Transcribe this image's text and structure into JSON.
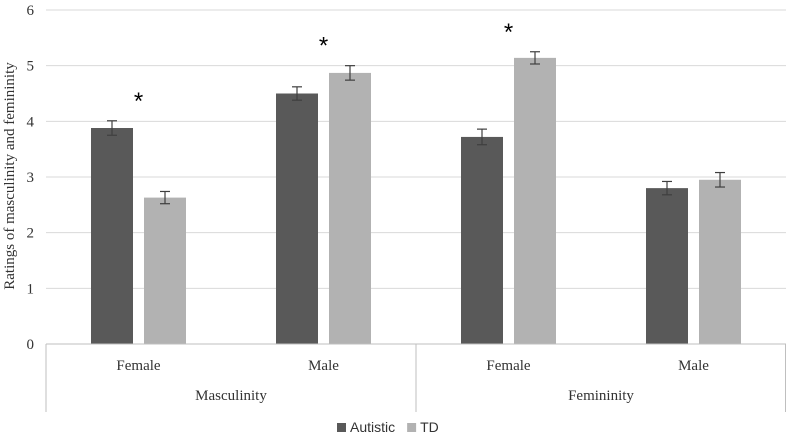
{
  "chart_data": {
    "type": "bar",
    "title": "",
    "xlabel": "",
    "ylabel": "Ratings of masculinity and femininity",
    "ylim": [
      0,
      6
    ],
    "yticks": [
      0,
      1,
      2,
      3,
      4,
      5,
      6
    ],
    "grid": true,
    "legend_position": "bottom",
    "groups": [
      {
        "label": "Masculinity",
        "categories": [
          "Female",
          "Male"
        ]
      },
      {
        "label": "Femininity",
        "categories": [
          "Female",
          "Male"
        ]
      }
    ],
    "categories": [
      "Female",
      "Male",
      "Female",
      "Male"
    ],
    "series": [
      {
        "name": "Autistic",
        "color": "#595959",
        "values": [
          3.88,
          4.5,
          3.72,
          2.8
        ],
        "errors": [
          0.13,
          0.12,
          0.14,
          0.12
        ]
      },
      {
        "name": "TD",
        "color": "#b2b2b2",
        "values": [
          2.63,
          4.87,
          5.14,
          2.95
        ],
        "errors": [
          0.11,
          0.13,
          0.11,
          0.13
        ]
      }
    ],
    "annotations": [
      {
        "text": "*",
        "category_index": 0
      },
      {
        "text": "*",
        "category_index": 1
      },
      {
        "text": "*",
        "category_index": 2
      }
    ]
  }
}
